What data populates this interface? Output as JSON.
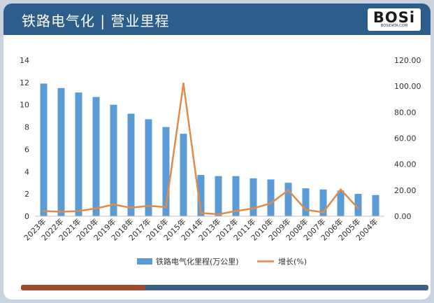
{
  "header": {
    "title": "铁路电气化 | 营业里程",
    "logo": "BOSi",
    "logo_sub": "BOSIDATA.COM"
  },
  "colors": {
    "header_bg": "#2d5d8b",
    "bar": "#5b9bd5",
    "line": "#e08b4a",
    "footer_bar": "#3d5f86",
    "footer_accent": "#a14a2e"
  },
  "chart_data": {
    "type": "bar",
    "categories": [
      "2023年",
      "2022年",
      "2021年",
      "2020年",
      "2019年",
      "2018年",
      "2017年",
      "2016年",
      "2015年",
      "2014年",
      "2013年",
      "2012年",
      "2011年",
      "2010年",
      "2009年",
      "2008年",
      "2007年",
      "2006年",
      "2005年",
      "2004年"
    ],
    "series": [
      {
        "name": "铁路电气化里程(万公里)",
        "type": "bar",
        "axis": "left",
        "values": [
          11.9,
          11.5,
          11.1,
          10.7,
          10.0,
          9.2,
          8.7,
          8.0,
          7.4,
          3.7,
          3.6,
          3.6,
          3.4,
          3.3,
          3.0,
          2.5,
          2.4,
          2.3,
          2.0,
          1.9
        ]
      },
      {
        "name": "增长(%)",
        "type": "line",
        "axis": "right",
        "values": [
          4.0,
          3.4,
          4.0,
          6.0,
          9.0,
          6.5,
          8.0,
          7.0,
          102.0,
          2.5,
          1.5,
          4.0,
          6.0,
          10.0,
          20.0,
          5.0,
          3.0,
          20.5,
          6.0,
          null
        ]
      }
    ],
    "y_left": {
      "ylim": [
        0,
        14
      ],
      "ticks": [
        "0",
        "2",
        "4",
        "6",
        "8",
        "10",
        "12",
        "14"
      ]
    },
    "y_right": {
      "ylim": [
        0,
        120
      ],
      "ticks": [
        "0.00",
        "20.00",
        "40.00",
        "60.00",
        "80.00",
        "100.00",
        "120.00"
      ]
    },
    "grid": false,
    "legend_position": "bottom"
  }
}
